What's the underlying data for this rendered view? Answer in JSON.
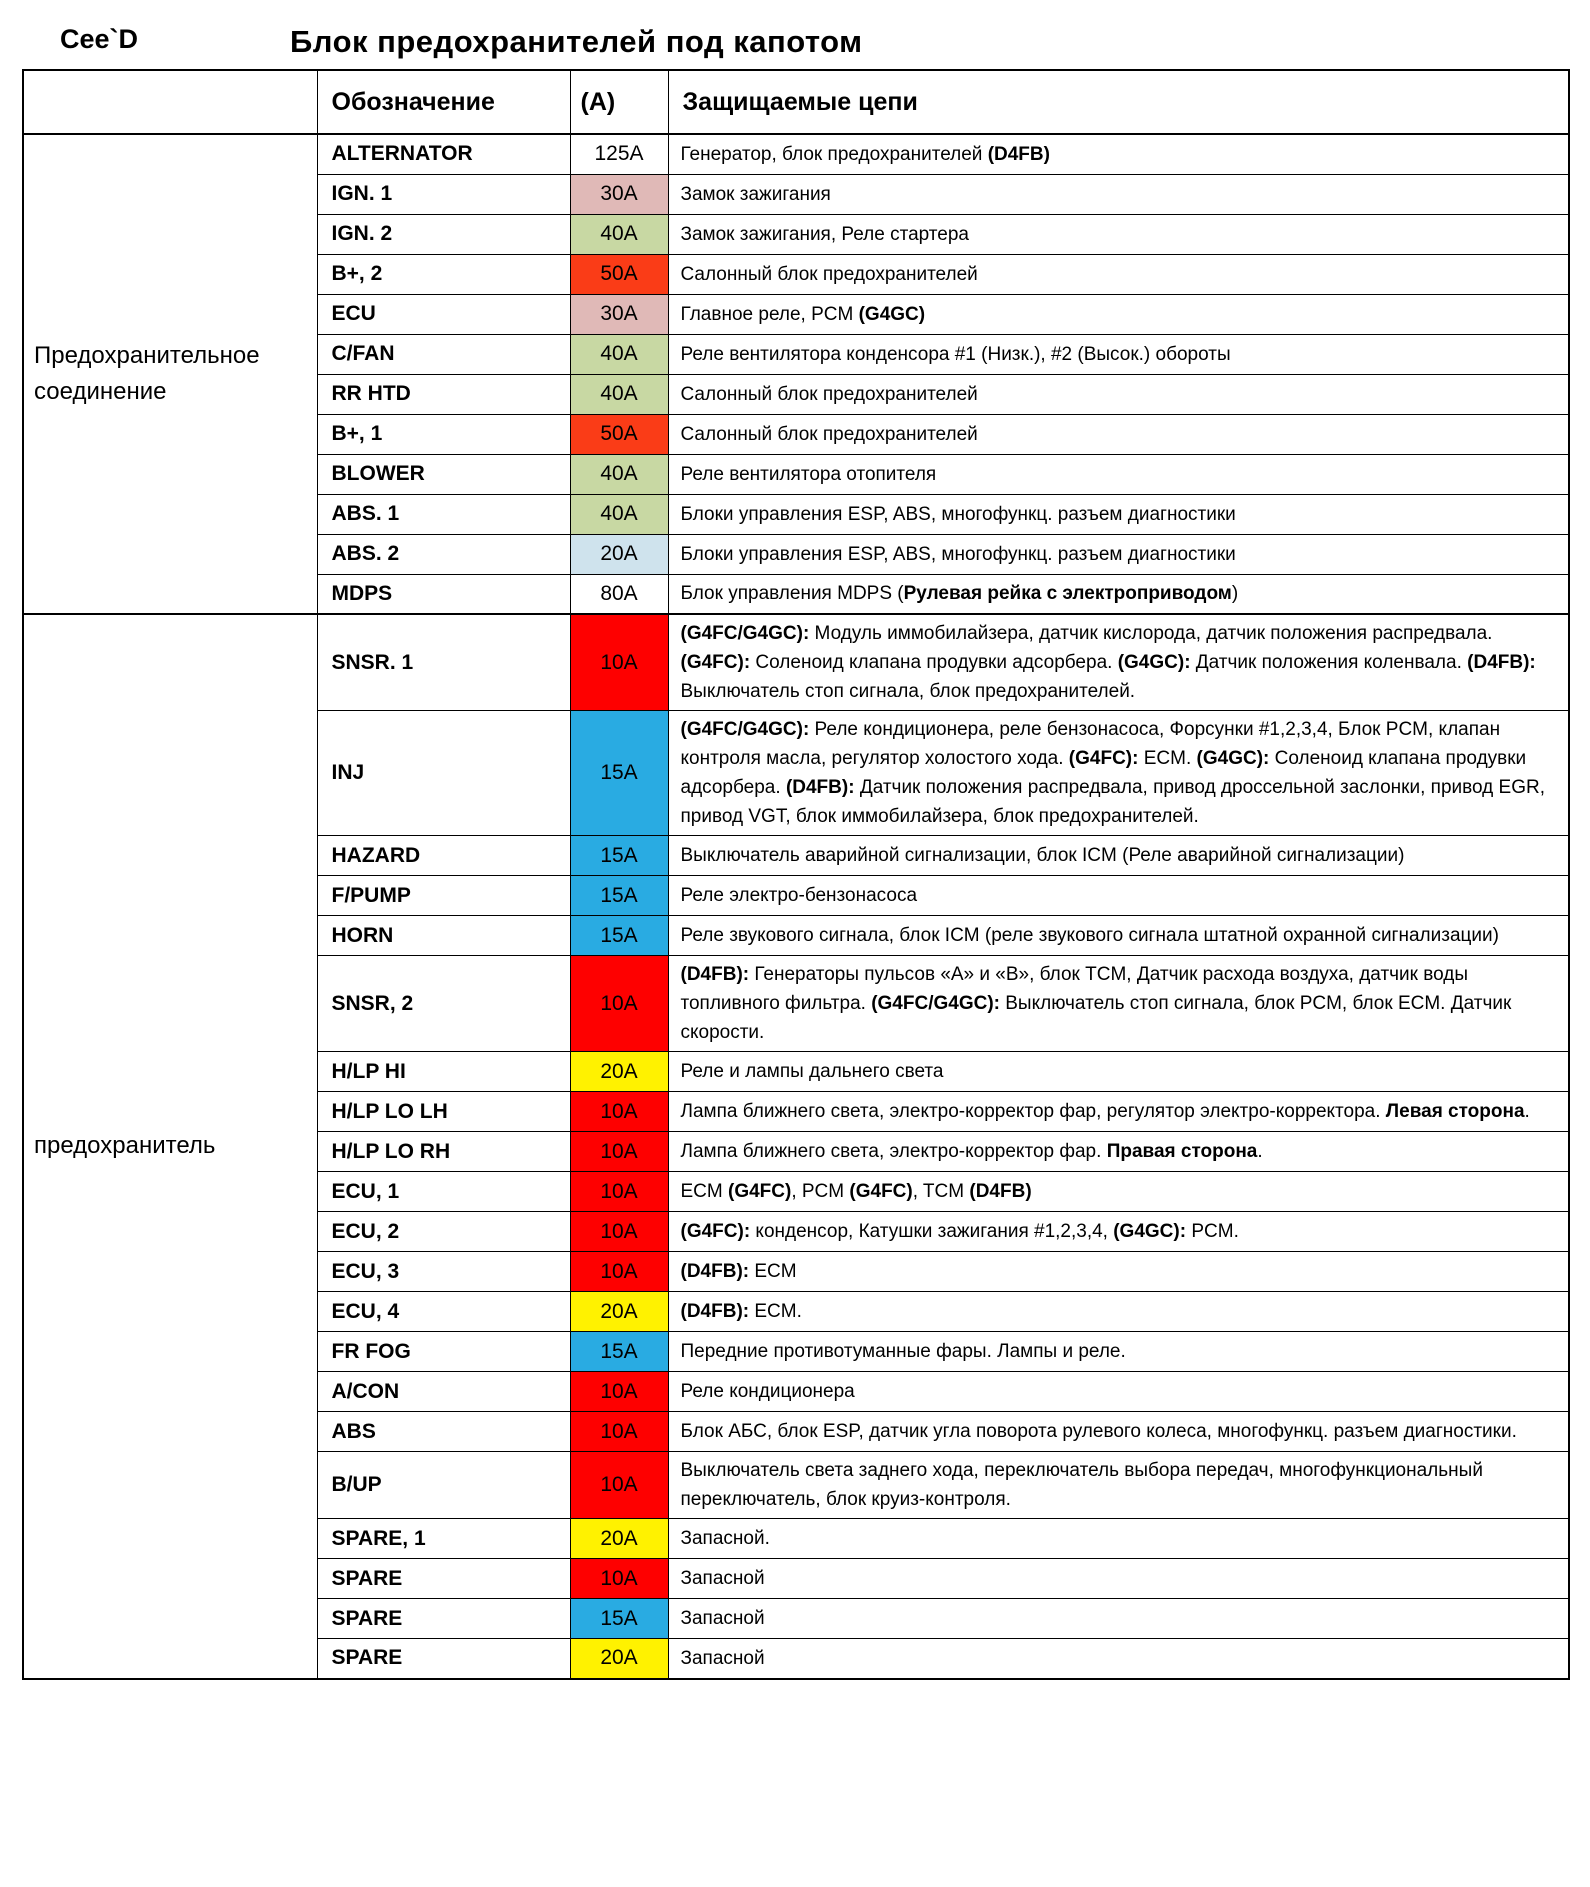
{
  "page": {
    "brand": "Cee`D",
    "title": "Блок предохранителей под капотом"
  },
  "colors": {
    "white": "#ffffff",
    "pink": "#e0b9b7",
    "green": "#c8d8a3",
    "orange_red": "#fa3c17",
    "light_blue": "#cfe3ed",
    "red": "#fe0000",
    "blue": "#29abe2",
    "yellow": "#fff200"
  },
  "table": {
    "headers": {
      "designation": "Обозначение",
      "amperage": "(А)",
      "circuits": "Защищаемые цепи"
    },
    "sections": [
      {
        "group_label": "Предохранительное соединение",
        "rows": [
          {
            "designation": "ALTERNATOR",
            "amperage": "125A",
            "amperage_color": "white",
            "circuits": [
              {
                "t": "Генератор, блок предохранителей ",
                "b": false
              },
              {
                "t": "(D4FB)",
                "b": true
              }
            ]
          },
          {
            "designation": "IGN. 1",
            "amperage": "30A",
            "amperage_color": "pink",
            "circuits": [
              {
                "t": "Замок зажигания",
                "b": false
              }
            ]
          },
          {
            "designation": "IGN. 2",
            "amperage": "40A",
            "amperage_color": "green",
            "circuits": [
              {
                "t": "Замок зажигания, Реле стартера",
                "b": false
              }
            ]
          },
          {
            "designation": "B+, 2",
            "amperage": "50A",
            "amperage_color": "orange_red",
            "circuits": [
              {
                "t": "Салонный блок предохранителей",
                "b": false
              }
            ]
          },
          {
            "designation": "ECU",
            "amperage": "30A",
            "amperage_color": "pink",
            "circuits": [
              {
                "t": "Главное реле, PCM ",
                "b": false
              },
              {
                "t": "(G4GC)",
                "b": true
              }
            ]
          },
          {
            "designation": "C/FAN",
            "amperage": "40A",
            "amperage_color": "green",
            "circuits": [
              {
                "t": "Реле вентилятора конденсора #1 (Низк.), #2 (Высок.) обороты",
                "b": false
              }
            ]
          },
          {
            "designation": "RR HTD",
            "amperage": "40A",
            "amperage_color": "green",
            "circuits": [
              {
                "t": "Салонный блок предохранителей",
                "b": false
              }
            ]
          },
          {
            "designation": "B+, 1",
            "amperage": "50A",
            "amperage_color": "orange_red",
            "circuits": [
              {
                "t": "Салонный блок предохранителей",
                "b": false
              }
            ]
          },
          {
            "designation": "BLOWER",
            "amperage": "40A",
            "amperage_color": "green",
            "circuits": [
              {
                "t": "Реле вентилятора отопителя",
                "b": false
              }
            ]
          },
          {
            "designation": "ABS. 1",
            "amperage": "40A",
            "amperage_color": "green",
            "circuits": [
              {
                "t": "Блоки управления ESP, ABS, многофункц. разъем диагностики",
                "b": false
              }
            ]
          },
          {
            "designation": "ABS. 2",
            "amperage": "20A",
            "amperage_color": "light_blue",
            "circuits": [
              {
                "t": "Блоки управления ESP, ABS, многофункц. разъем диагностики",
                "b": false
              }
            ]
          },
          {
            "designation": "MDPS",
            "amperage": "80A",
            "amperage_color": "white",
            "circuits": [
              {
                "t": "Блок управления MDPS (",
                "b": false
              },
              {
                "t": "Рулевая рейка с электроприводом",
                "b": true
              },
              {
                "t": ")",
                "b": false
              }
            ]
          }
        ]
      },
      {
        "group_label": "предохранитель",
        "rows": [
          {
            "designation": "SNSR. 1",
            "amperage": "10A",
            "amperage_color": "red",
            "circuits": [
              {
                "t": "(G4FC/G4GC):",
                "b": true
              },
              {
                "t": " Модуль иммобилайзера, датчик кислорода, датчик положения распредвала. ",
                "b": false
              },
              {
                "t": "(G4FC):",
                "b": true
              },
              {
                "t": " Соленоид клапана продувки адсорбера. ",
                "b": false
              },
              {
                "t": "(G4GC):",
                "b": true
              },
              {
                "t": " Датчик положения коленвала. ",
                "b": false
              },
              {
                "t": "(D4FB):",
                "b": true
              },
              {
                "t": " Выключатель стоп сигнала, блок предохранителей.",
                "b": false
              }
            ]
          },
          {
            "designation": "INJ",
            "amperage": "15A",
            "amperage_color": "blue",
            "circuits": [
              {
                "t": "(G4FC/G4GC):",
                "b": true
              },
              {
                "t": " Реле кондиционера, реле бензонасоса, Форсунки #1,2,3,4, Блок PCM, клапан контроля масла, регулятор холостого хода. ",
                "b": false
              },
              {
                "t": "(G4FC):",
                "b": true
              },
              {
                "t": " ECM. ",
                "b": false
              },
              {
                "t": "(G4GC):",
                "b": true
              },
              {
                "t": " Соленоид клапана продувки адсорбера. ",
                "b": false
              },
              {
                "t": "(D4FB):",
                "b": true
              },
              {
                "t": "  Датчик положения распредвала, привод дроссельной заслонки, привод EGR, привод VGT, блок иммобилайзера, блок предохранителей.",
                "b": false
              }
            ]
          },
          {
            "designation": "HAZARD",
            "amperage": "15A",
            "amperage_color": "blue",
            "circuits": [
              {
                "t": "Выключатель аварийной сигнализации, блок ICM (Реле аварийной сигнализации)",
                "b": false
              }
            ]
          },
          {
            "designation": "F/PUMP",
            "amperage": "15A",
            "amperage_color": "blue",
            "circuits": [
              {
                "t": "Реле электро-бензонасоса",
                "b": false
              }
            ]
          },
          {
            "designation": "HORN",
            "amperage": "15A",
            "amperage_color": "blue",
            "circuits": [
              {
                "t": "Реле звукового сигнала, блок ICM (реле звукового сигнала штатной охранной сигнализации)",
                "b": false
              }
            ]
          },
          {
            "designation": "SNSR, 2",
            "amperage": "10A",
            "amperage_color": "red",
            "circuits": [
              {
                "t": "(D4FB):",
                "b": true
              },
              {
                "t": " Генераторы пульсов «А» и «В», блок TCM, Датчик расхода воздуха, датчик воды топливного фильтра. ",
                "b": false
              },
              {
                "t": "(G4FC/G4GC):",
                "b": true
              },
              {
                "t": " Выключатель стоп сигнала, блок PCM, блок ECM.  Датчик скорости.",
                "b": false
              }
            ]
          },
          {
            "designation": "H/LP HI",
            "amperage": "20A",
            "amperage_color": "yellow",
            "circuits": [
              {
                "t": "Реле и лампы дальнего света",
                "b": false
              }
            ]
          },
          {
            "designation": "H/LP LO LH",
            "amperage": "10A",
            "amperage_color": "red",
            "circuits": [
              {
                "t": "Лампа ближнего света, электро-корректор фар, регулятор электро-корректора. ",
                "b": false
              },
              {
                "t": "Левая сторона",
                "b": true
              },
              {
                "t": ".",
                "b": false
              }
            ]
          },
          {
            "designation": "H/LP LO RH",
            "amperage": "10A",
            "amperage_color": "red",
            "circuits": [
              {
                "t": "Лампа ближнего света, электро-корректор фар. ",
                "b": false
              },
              {
                "t": "Правая сторона",
                "b": true
              },
              {
                "t": ".",
                "b": false
              }
            ]
          },
          {
            "designation": "ECU, 1",
            "amperage": "10A",
            "amperage_color": "red",
            "circuits": [
              {
                "t": "ECM ",
                "b": false
              },
              {
                "t": "(G4FC)",
                "b": true
              },
              {
                "t": ", PCM ",
                "b": false
              },
              {
                "t": "(G4FC)",
                "b": true
              },
              {
                "t": ", TCM ",
                "b": false
              },
              {
                "t": "(D4FB)",
                "b": true
              }
            ]
          },
          {
            "designation": "ECU, 2",
            "amperage": "10A",
            "amperage_color": "red",
            "circuits": [
              {
                "t": "(G4FC):",
                "b": true
              },
              {
                "t": " конденсор, Катушки зажигания #1,2,3,4, ",
                "b": false
              },
              {
                "t": "(G4GC):",
                "b": true
              },
              {
                "t": " PCM.",
                "b": false
              }
            ]
          },
          {
            "designation": "ECU, 3",
            "amperage": "10A",
            "amperage_color": "red",
            "circuits": [
              {
                "t": "(D4FB):",
                "b": true
              },
              {
                "t": " ECM",
                "b": false
              }
            ]
          },
          {
            "designation": "ECU, 4",
            "amperage": "20A",
            "amperage_color": "yellow",
            "circuits": [
              {
                "t": "(D4FB):",
                "b": true
              },
              {
                "t": " ECM.",
                "b": false
              }
            ]
          },
          {
            "designation": "FR FOG",
            "amperage": "15A",
            "amperage_color": "blue",
            "circuits": [
              {
                "t": "Передние противотуманные фары. Лампы и реле.",
                "b": false
              }
            ]
          },
          {
            "designation": "A/CON",
            "amperage": "10A",
            "amperage_color": "red",
            "circuits": [
              {
                "t": "Реле кондиционера",
                "b": false
              }
            ]
          },
          {
            "designation": "ABS",
            "amperage": "10A",
            "amperage_color": "red",
            "circuits": [
              {
                "t": "Блок АБС, блок ESP, датчик угла поворота рулевого колеса, многофункц. разъем диагностики.",
                "b": false
              }
            ]
          },
          {
            "designation": "B/UP",
            "amperage": "10A",
            "amperage_color": "red",
            "circuits": [
              {
                "t": "Выключатель света заднего хода, переключатель выбора передач, многофункциональный переключатель, блок  круиз-контроля.",
                "b": false
              }
            ]
          },
          {
            "designation": "SPARE, 1",
            "amperage": "20A",
            "amperage_color": "yellow",
            "circuits": [
              {
                "t": "Запасной.",
                "b": false
              }
            ]
          },
          {
            "designation": "SPARE",
            "amperage": "10A",
            "amperage_color": "red",
            "circuits": [
              {
                "t": "Запасной",
                "b": false
              }
            ]
          },
          {
            "designation": "SPARE",
            "amperage": "15A",
            "amperage_color": "blue",
            "circuits": [
              {
                "t": "Запасной",
                "b": false
              }
            ]
          },
          {
            "designation": "SPARE",
            "amperage": "20A",
            "amperage_color": "yellow",
            "circuits": [
              {
                "t": "Запасной",
                "b": false
              }
            ]
          }
        ]
      }
    ]
  }
}
